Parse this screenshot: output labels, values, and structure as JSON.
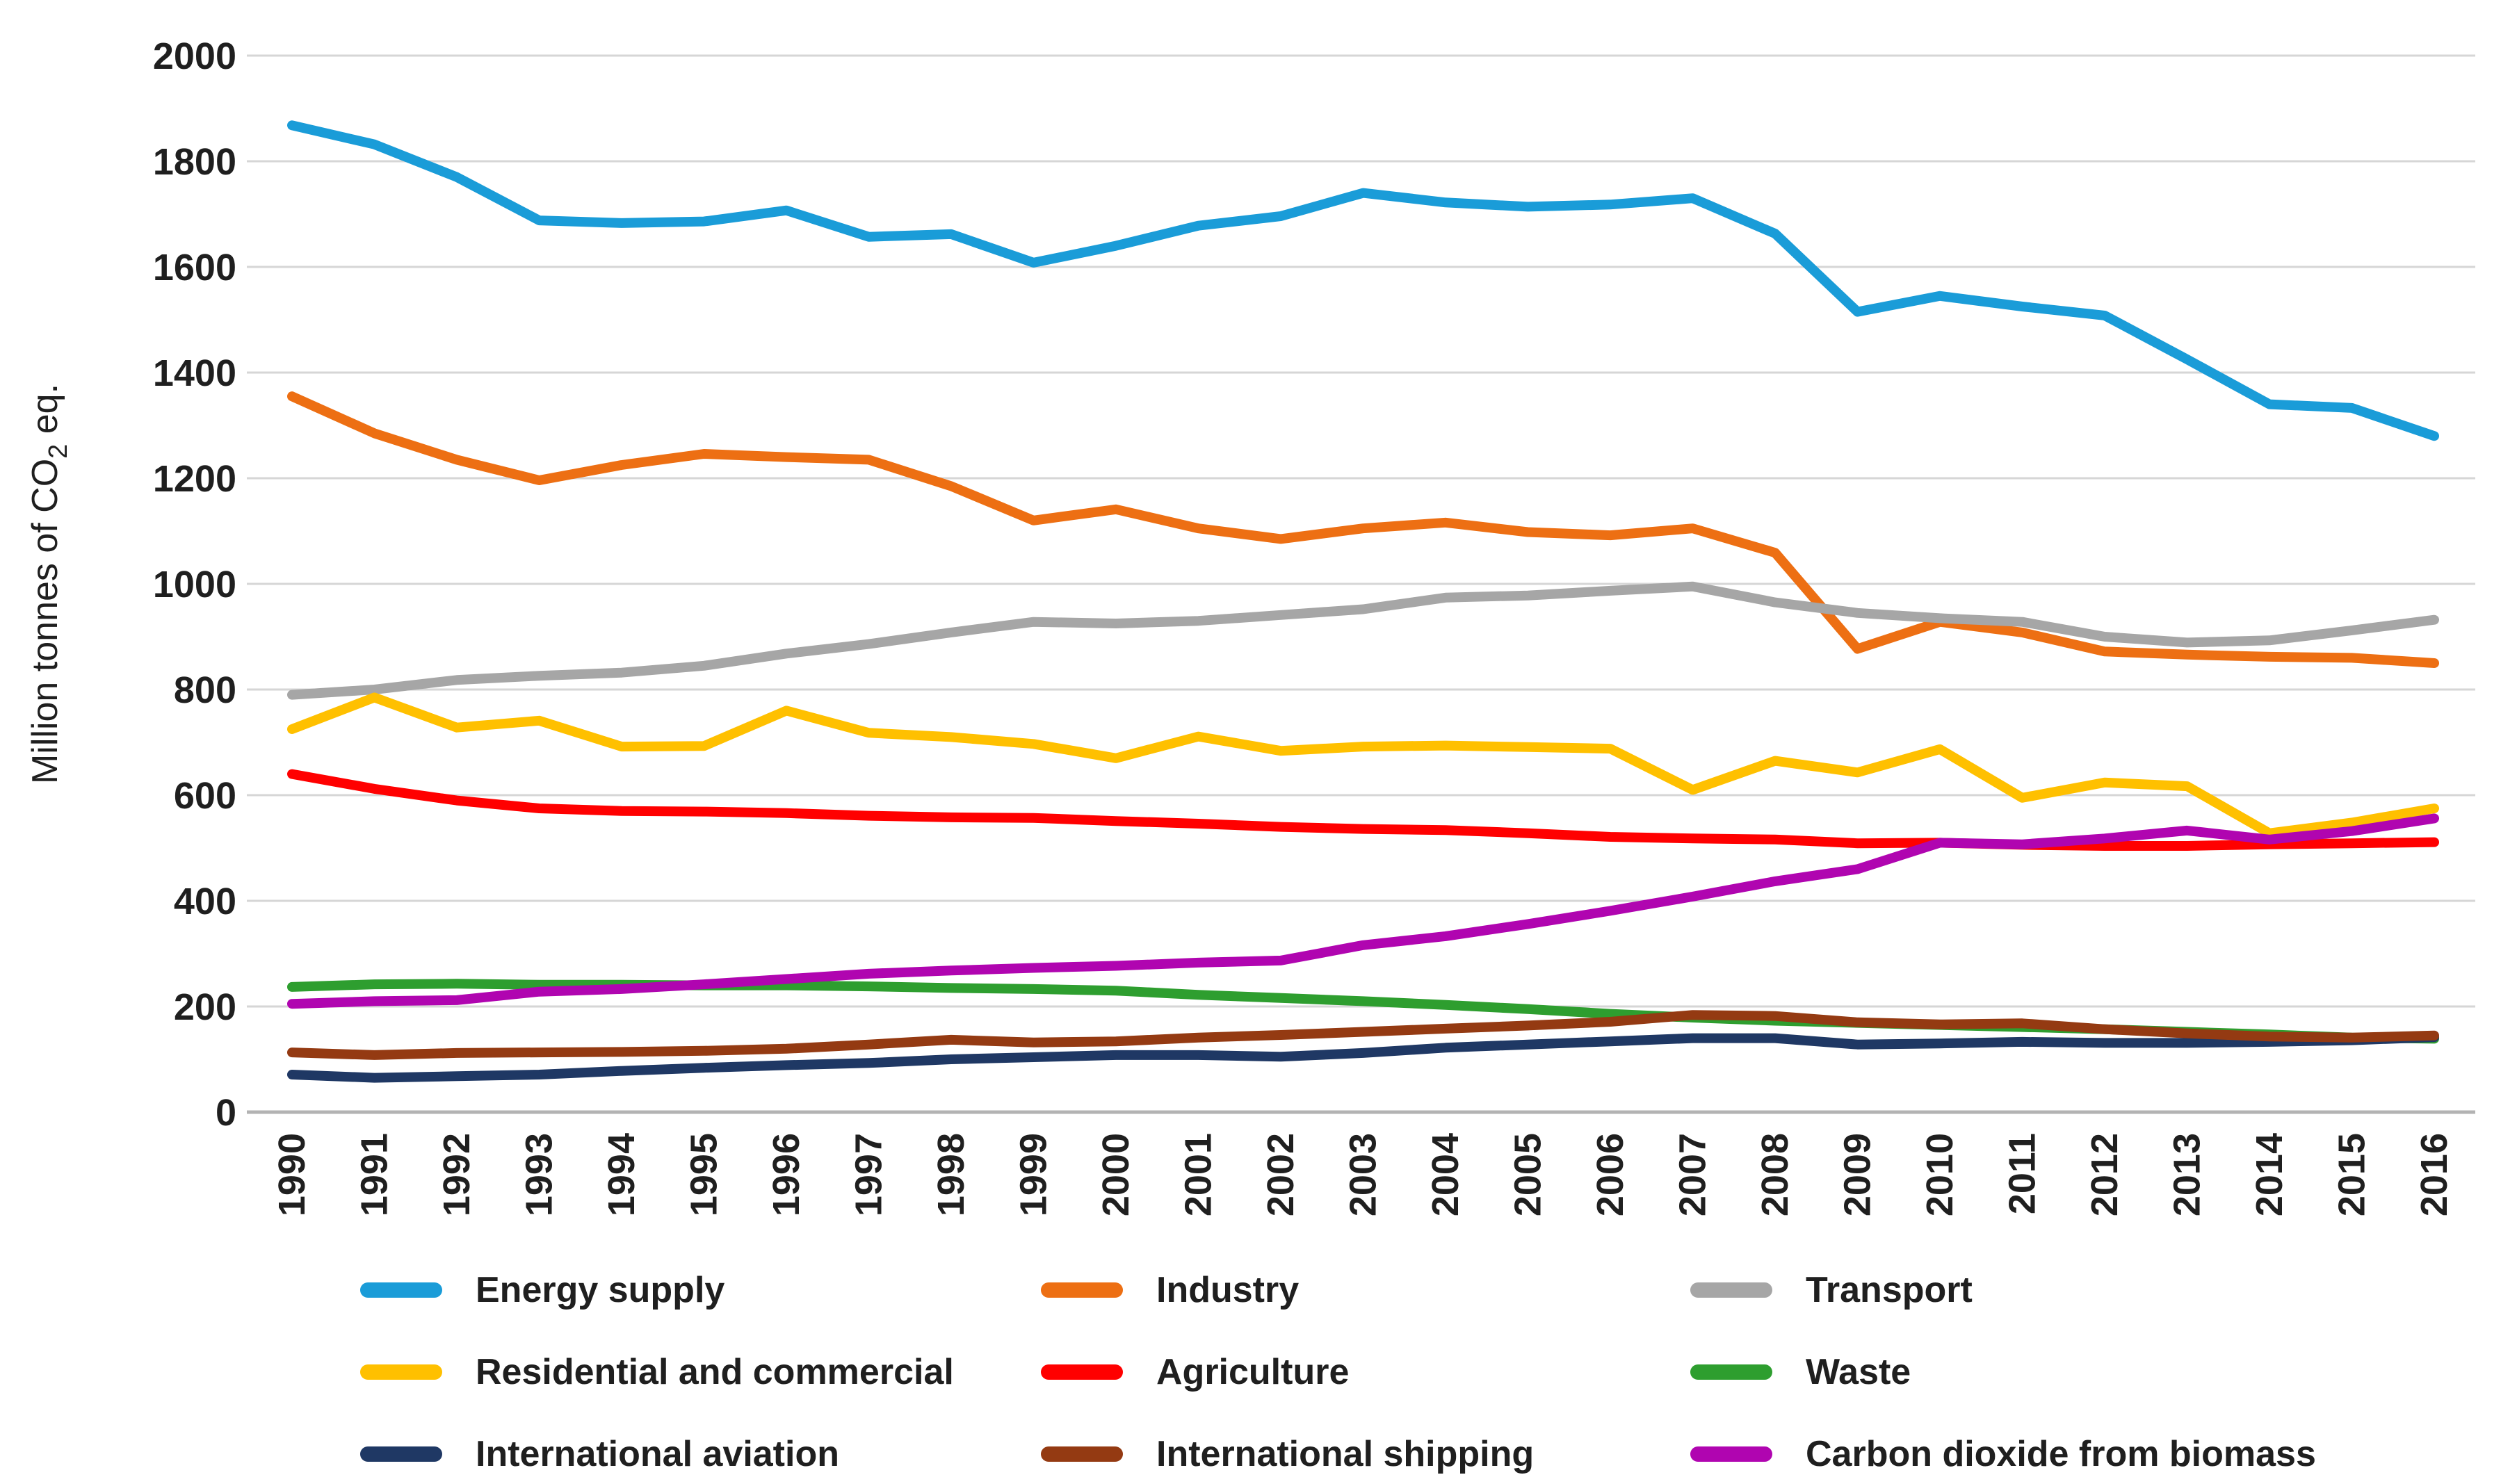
{
  "y_axis": {
    "title_before_sub": "Million tonnes of CO",
    "title_sub": "2",
    "title_after_sub": " eq."
  },
  "chart_data": {
    "type": "line",
    "title": "",
    "xlabel": "",
    "ylabel": "Million tonnes of CO2 eq.",
    "ylim": [
      0,
      2000
    ],
    "ytick_step": 200,
    "grid": true,
    "legend_position": "bottom",
    "categories": [
      1990,
      1991,
      1992,
      1993,
      1994,
      1995,
      1996,
      1997,
      1998,
      1999,
      2000,
      2001,
      2002,
      2003,
      2004,
      2005,
      2006,
      2007,
      2008,
      2009,
      2010,
      2011,
      2012,
      2013,
      2014,
      2015,
      2016
    ],
    "series": [
      {
        "name": "Energy supply",
        "color": "#1A9CD8",
        "values": [
          1868,
          1832,
          1770,
          1688,
          1683,
          1686,
          1707,
          1657,
          1662,
          1608,
          1640,
          1678,
          1696,
          1740,
          1722,
          1714,
          1718,
          1730,
          1663,
          1515,
          1545,
          1525,
          1508,
          1425,
          1340,
          1333,
          1280
        ]
      },
      {
        "name": "Industry",
        "color": "#ED6F13",
        "values": [
          1355,
          1285,
          1235,
          1196,
          1225,
          1246,
          1240,
          1235,
          1185,
          1120,
          1141,
          1105,
          1085,
          1105,
          1116,
          1098,
          1092,
          1105,
          1059,
          877,
          928,
          908,
          872,
          866,
          862,
          860,
          850
        ]
      },
      {
        "name": "Transport",
        "color": "#A6A6A6",
        "values": [
          790,
          800,
          818,
          826,
          832,
          845,
          868,
          886,
          908,
          928,
          925,
          930,
          941,
          952,
          974,
          978,
          987,
          995,
          965,
          945,
          935,
          928,
          900,
          889,
          893,
          912,
          932
        ]
      },
      {
        "name": "Residential and commercial",
        "color": "#FFC000",
        "values": [
          725,
          785,
          728,
          741,
          692,
          693,
          760,
          718,
          710,
          697,
          670,
          711,
          684,
          692,
          694,
          691,
          688,
          610,
          665,
          643,
          687,
          595,
          624,
          617,
          528,
          548,
          575
        ]
      },
      {
        "name": "Agriculture",
        "color": "#FF0000",
        "values": [
          640,
          612,
          590,
          575,
          570,
          569,
          566,
          561,
          558,
          557,
          551,
          546,
          540,
          536,
          534,
          528,
          521,
          518,
          516,
          509,
          510,
          506,
          504,
          504,
          507,
          509,
          511
        ]
      },
      {
        "name": "Waste",
        "color": "#2E9E2F",
        "values": [
          237,
          242,
          243,
          241,
          241,
          240,
          240,
          238,
          235,
          233,
          230,
          222,
          216,
          210,
          203,
          195,
          186,
          179,
          173,
          169,
          165,
          161,
          157,
          152,
          147,
          141,
          139
        ]
      },
      {
        "name": "International aviation",
        "color": "#1F3864",
        "values": [
          71,
          65,
          68,
          71,
          78,
          84,
          89,
          93,
          100,
          104,
          108,
          108,
          105,
          112,
          122,
          128,
          134,
          140,
          140,
          128,
          130,
          133,
          131,
          131,
          133,
          136,
          142
        ]
      },
      {
        "name": "International shipping",
        "color": "#943A12",
        "values": [
          113,
          108,
          112,
          113,
          114,
          116,
          120,
          128,
          137,
          132,
          134,
          141,
          146,
          152,
          158,
          164,
          171,
          184,
          182,
          170,
          166,
          168,
          157,
          149,
          143,
          141,
          145
        ]
      },
      {
        "name": "Carbon dioxide from biomass",
        "color": "#B005B0",
        "values": [
          205,
          210,
          212,
          228,
          233,
          242,
          252,
          262,
          268,
          273,
          277,
          283,
          287,
          316,
          333,
          356,
          381,
          408,
          437,
          460,
          510,
          507,
          518,
          533,
          516,
          532,
          556
        ]
      }
    ]
  }
}
